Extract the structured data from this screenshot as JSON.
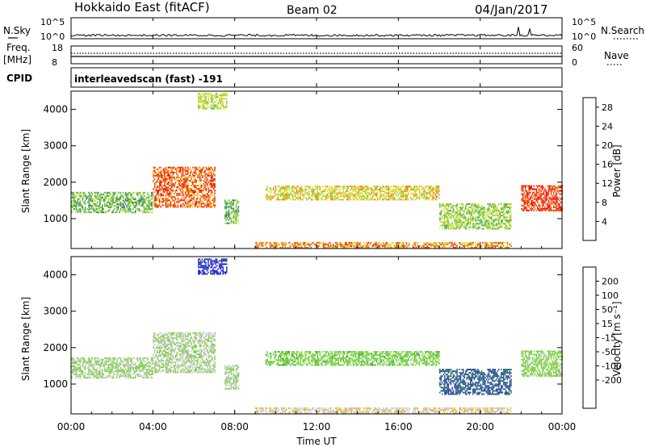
{
  "header": {
    "station": "Hokkaido East (fitACF)",
    "beam": "Beam 02",
    "date": "04/Jan/2017"
  },
  "nsky_panel": {
    "left_label": "N.Sky",
    "right_label": "N.Search",
    "ticks_left": [
      "10^5",
      "10^0"
    ],
    "ticks_right": [
      "10^5",
      "10^0"
    ]
  },
  "freq_panel": {
    "left_label_1": "Freq.",
    "left_label_2": "[MHz]",
    "left_ticks": [
      "18",
      "8"
    ],
    "right_ticks": [
      "60",
      "0"
    ],
    "right_label": "Nave"
  },
  "cpid_panel": {
    "label": "CPID",
    "value": "interleavedscan (fast) -191"
  },
  "power_panel": {
    "ylabel": "Slant Range [km]",
    "yticks": [
      "4000",
      "3000",
      "2000",
      "1000"
    ],
    "colorbar_label": "Power [dB]",
    "colorbar_ticks": [
      "28",
      "24",
      "20",
      "16",
      "12",
      "8",
      "4"
    ],
    "colors": [
      "#1a1aff",
      "#2a4fa8",
      "#3c7a78",
      "#4da860",
      "#8cd23c",
      "#c8e632",
      "#f0c814",
      "#f07814",
      "#e63c14",
      "#ff0000"
    ]
  },
  "velocity_panel": {
    "ylabel": "Slant Range [km]",
    "yticks": [
      "4000",
      "3000",
      "2000",
      "1000"
    ],
    "colorbar_label": "Velocity [m s⁻¹]",
    "colorbar_ticks": [
      "200",
      "100",
      "50",
      "15",
      "-15",
      "-50",
      "-100",
      "-200"
    ],
    "colors": [
      "#ff0000",
      "#f03c14",
      "#f07814",
      "#f0b414",
      "#c8c8c8",
      "#78d23c",
      "#3ca03c",
      "#2a6e6e",
      "#2a3fa8",
      "#1a1adc"
    ]
  },
  "x_axis": {
    "label": "Time UT",
    "ticks": [
      "00:00",
      "04:00",
      "08:00",
      "12:00",
      "16:00",
      "20:00",
      "00:00"
    ]
  },
  "chart_data": {
    "type": "heatmap",
    "x_range_hours": [
      0,
      24
    ],
    "y_range_km": [
      180,
      4500
    ],
    "power_scale_db": [
      0,
      30
    ],
    "velocity_scale_ms": [
      -250,
      250
    ],
    "echo_regions": [
      {
        "t_start": 0.0,
        "t_end": 4.0,
        "range_min": 1150,
        "range_max": 1700,
        "power_db": 12,
        "velocity_ms": 0
      },
      {
        "t_start": 4.0,
        "t_end": 7.0,
        "range_min": 1300,
        "range_max": 2400,
        "power_db": 24,
        "velocity_ms": -5
      },
      {
        "t_start": 6.2,
        "t_end": 7.6,
        "range_min": 4000,
        "range_max": 4450,
        "power_db": 16,
        "velocity_ms": 200
      },
      {
        "t_start": 7.5,
        "t_end": 8.2,
        "range_min": 850,
        "range_max": 1500,
        "power_db": 12,
        "velocity_ms": 0
      },
      {
        "t_start": 9.5,
        "t_end": 18.0,
        "range_min": 1500,
        "range_max": 1900,
        "power_db": 18,
        "velocity_ms": 30
      },
      {
        "t_start": 18.0,
        "t_end": 21.5,
        "range_min": 700,
        "range_max": 1400,
        "power_db": 14,
        "velocity_ms": 150
      },
      {
        "t_start": 22.0,
        "t_end": 24.0,
        "range_min": 1200,
        "range_max": 1900,
        "power_db": 26,
        "velocity_ms": 20
      },
      {
        "t_start": 9.0,
        "t_end": 21.5,
        "range_min": 180,
        "range_max": 350,
        "power_db": 22,
        "velocity_ms": -40
      }
    ]
  }
}
